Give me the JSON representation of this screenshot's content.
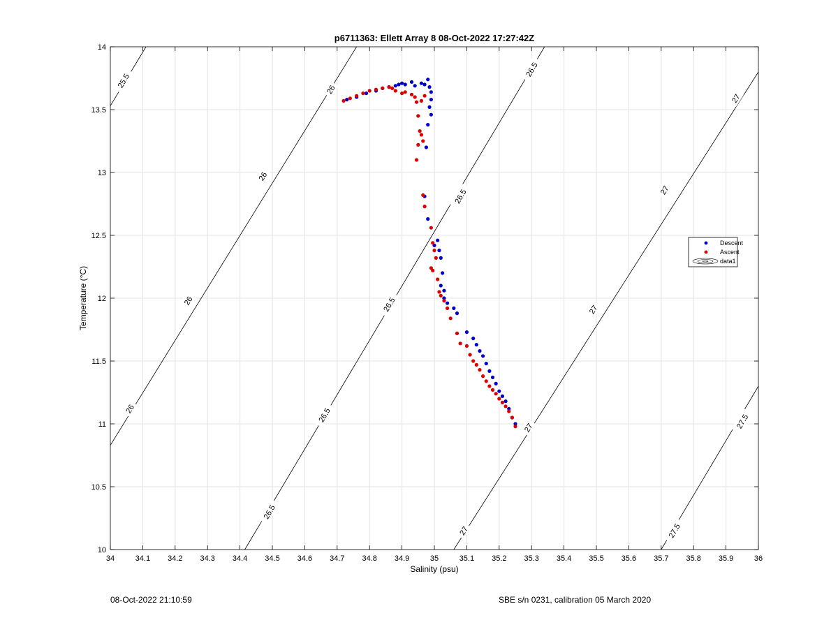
{
  "chart_data": {
    "type": "scatter",
    "title": "p6711363: Ellett Array 8 08-Oct-2022 17:27:42Z",
    "xlabel": "Salinity (psu)",
    "ylabel": "Temperature (°C)",
    "xlim": [
      34,
      36
    ],
    "ylim": [
      10,
      14
    ],
    "xticks": [
      "34",
      "34.1",
      "34.2",
      "34.3",
      "34.4",
      "34.5",
      "34.6",
      "34.7",
      "34.8",
      "34.9",
      "35",
      "35.1",
      "35.2",
      "35.3",
      "35.4",
      "35.5",
      "35.6",
      "35.7",
      "35.8",
      "35.9",
      "36"
    ],
    "yticks": [
      "10",
      "10.5",
      "11",
      "11.5",
      "12",
      "12.5",
      "13",
      "13.5",
      "14"
    ],
    "grid": true,
    "legend": {
      "position": "right",
      "entries": [
        {
          "name": "Descent",
          "color": "#0000cc"
        },
        {
          "name": "Ascent",
          "color": "#dd0000"
        },
        {
          "name": "data1",
          "color": "#000000"
        }
      ]
    },
    "contours": [
      {
        "label": "25.5",
        "start": [
          34.0,
          13.53
        ],
        "end": [
          34.11,
          14.0
        ],
        "labels_at": [
          [
            34.04,
            13.73
          ]
        ]
      },
      {
        "label": "26",
        "start": [
          34.0,
          10.83
        ],
        "end": [
          34.76,
          14.0
        ],
        "labels_at": [
          [
            34.06,
            11.12
          ],
          [
            34.24,
            11.98
          ],
          [
            34.47,
            12.97
          ],
          [
            34.68,
            13.66
          ]
        ]
      },
      {
        "label": "26.5",
        "start": [
          34.415,
          10.0
        ],
        "end": [
          35.34,
          14.0
        ],
        "labels_at": [
          [
            34.49,
            10.3
          ],
          [
            34.66,
            11.07
          ],
          [
            34.86,
            11.95
          ],
          [
            35.08,
            12.81
          ],
          [
            35.3,
            13.82
          ]
        ]
      },
      {
        "label": "27",
        "start": [
          35.06,
          10.0
        ],
        "end": [
          36.0,
          13.8
        ],
        "labels_at": [
          [
            35.09,
            10.15
          ],
          [
            35.29,
            10.97
          ],
          [
            35.49,
            11.91
          ],
          [
            35.71,
            12.86
          ],
          [
            35.93,
            13.59
          ]
        ]
      },
      {
        "label": "27.5",
        "start": [
          35.7,
          10.0
        ],
        "end": [
          36.0,
          11.3
        ],
        "labels_at": [
          [
            35.74,
            10.15
          ],
          [
            35.95,
            11.02
          ]
        ]
      }
    ],
    "series": [
      {
        "name": "Descent",
        "color": "#0000cc",
        "x": [
          34.73,
          34.76,
          34.79,
          34.82,
          34.84,
          34.86,
          34.88,
          34.89,
          34.9,
          34.91,
          34.93,
          34.94,
          34.96,
          34.97,
          34.98,
          34.985,
          34.99,
          34.99,
          34.985,
          34.99,
          34.98,
          34.975,
          34.97,
          34.98,
          35.0,
          35.01,
          35.015,
          35.02,
          35.025,
          35.02,
          35.03,
          35.03,
          35.04,
          35.06,
          35.07,
          35.1,
          35.12,
          35.13,
          35.14,
          35.15,
          35.16,
          35.17,
          35.18,
          35.19,
          35.2,
          35.21,
          35.22,
          35.23,
          35.24,
          35.25
        ],
        "y": [
          13.58,
          13.6,
          13.63,
          13.65,
          13.67,
          13.68,
          13.69,
          13.7,
          13.71,
          13.7,
          13.72,
          13.69,
          13.71,
          13.7,
          13.74,
          13.68,
          13.64,
          13.58,
          13.52,
          13.46,
          13.38,
          13.2,
          12.81,
          12.63,
          12.42,
          12.46,
          12.38,
          12.32,
          12.2,
          12.1,
          12.06,
          12.0,
          11.96,
          11.92,
          11.88,
          11.73,
          11.68,
          11.63,
          11.58,
          11.54,
          11.48,
          11.42,
          11.37,
          11.32,
          11.26,
          11.22,
          11.18,
          11.12,
          11.05,
          11.0
        ]
      },
      {
        "name": "Ascent",
        "color": "#dd0000",
        "x": [
          34.72,
          34.74,
          34.76,
          34.78,
          34.8,
          34.82,
          34.84,
          34.86,
          34.87,
          34.88,
          34.9,
          34.91,
          34.93,
          34.94,
          34.945,
          34.95,
          34.955,
          34.96,
          34.965,
          34.945,
          34.95,
          34.96,
          34.97,
          34.965,
          34.97,
          34.99,
          34.995,
          35.0,
          35.005,
          34.99,
          34.995,
          35.01,
          35.015,
          35.02,
          35.03,
          35.04,
          35.05,
          35.07,
          35.08,
          35.1,
          35.11,
          35.12,
          35.13,
          35.14,
          35.15,
          35.16,
          35.17,
          35.18,
          35.19,
          35.2,
          35.21,
          35.22,
          35.23,
          35.24,
          35.25
        ],
        "y": [
          13.57,
          13.59,
          13.61,
          13.63,
          13.65,
          13.66,
          13.67,
          13.68,
          13.67,
          13.65,
          13.63,
          13.64,
          13.62,
          13.6,
          13.56,
          13.45,
          13.33,
          13.3,
          13.25,
          13.1,
          13.22,
          13.57,
          13.61,
          12.82,
          12.73,
          12.56,
          12.44,
          12.38,
          12.32,
          12.24,
          12.22,
          12.15,
          12.05,
          12.02,
          11.98,
          11.92,
          11.84,
          11.72,
          11.64,
          11.62,
          11.55,
          11.5,
          11.47,
          11.43,
          11.38,
          11.34,
          11.3,
          11.27,
          11.24,
          11.2,
          11.17,
          11.14,
          11.1,
          11.05,
          10.98
        ]
      }
    ]
  },
  "footer": {
    "timestamp": "08-Oct-2022 21:10:59",
    "calibration": "SBE s/n 0231, calibration 05 March 2020"
  },
  "colors": {
    "grid": "#e3e3e3",
    "axis": "#000000",
    "contour": "#000000"
  }
}
